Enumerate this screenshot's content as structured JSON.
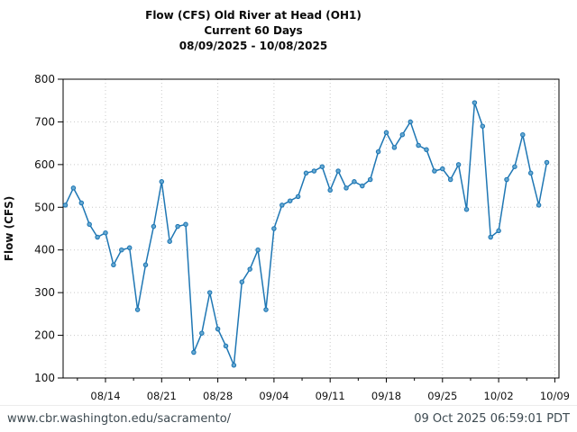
{
  "page": {
    "footer": {
      "url": "www.cbr.washington.edu/sacramento/",
      "timestamp": "09 Oct 2025 06:59:01 PDT"
    }
  },
  "chart_data": {
    "type": "line",
    "title": "Flow (CFS) Old River at Head (OH1)",
    "subtitle": "Current 60 Days",
    "date_range": "08/09/2025 - 10/08/2025",
    "ylabel": "Flow (CFS)",
    "xlabel": "",
    "x": [
      "08/09",
      "08/10",
      "08/11",
      "08/12",
      "08/13",
      "08/14",
      "08/15",
      "08/16",
      "08/17",
      "08/18",
      "08/19",
      "08/20",
      "08/21",
      "08/22",
      "08/23",
      "08/24",
      "08/25",
      "08/26",
      "08/27",
      "08/28",
      "08/29",
      "08/30",
      "08/31",
      "09/01",
      "09/02",
      "09/03",
      "09/04",
      "09/05",
      "09/06",
      "09/07",
      "09/08",
      "09/09",
      "09/10",
      "09/11",
      "09/12",
      "09/13",
      "09/14",
      "09/15",
      "09/16",
      "09/17",
      "09/18",
      "09/19",
      "09/20",
      "09/21",
      "09/22",
      "09/23",
      "09/24",
      "09/25",
      "09/26",
      "09/27",
      "09/28",
      "09/29",
      "09/30",
      "10/01",
      "10/02",
      "10/03",
      "10/04",
      "10/05",
      "10/06",
      "10/07",
      "10/08"
    ],
    "values": [
      505,
      545,
      510,
      460,
      430,
      440,
      365,
      400,
      405,
      260,
      365,
      455,
      560,
      420,
      455,
      460,
      160,
      205,
      300,
      215,
      175,
      130,
      325,
      355,
      400,
      260,
      450,
      505,
      515,
      525,
      580,
      585,
      595,
      540,
      585,
      545,
      560,
      550,
      565,
      630,
      675,
      640,
      670,
      700,
      645,
      635,
      585,
      590,
      565,
      600,
      495,
      745,
      690,
      430,
      445,
      565,
      595,
      670,
      580,
      505,
      605
    ],
    "xtick_labels": [
      "08/14",
      "08/21",
      "08/28",
      "09/04",
      "09/11",
      "09/18",
      "09/25",
      "10/02",
      "10/09"
    ],
    "xtick_days": [
      5,
      12,
      19,
      26,
      33,
      40,
      47,
      54,
      61
    ],
    "xminor_days": [
      1.5,
      8.5,
      15.5,
      22.5,
      29.5,
      36.5,
      43.5,
      50.5,
      57.5
    ],
    "yticks": [
      100,
      200,
      300,
      400,
      500,
      600,
      700,
      800
    ],
    "ylim": [
      100,
      800
    ],
    "grid": "dotted",
    "legend": "none",
    "line_color": "#1f77b4",
    "marker_fill": "#68aad2",
    "grid_color": "#c9c9c9",
    "axis_color": "#000000",
    "text_color": "#111111"
  }
}
